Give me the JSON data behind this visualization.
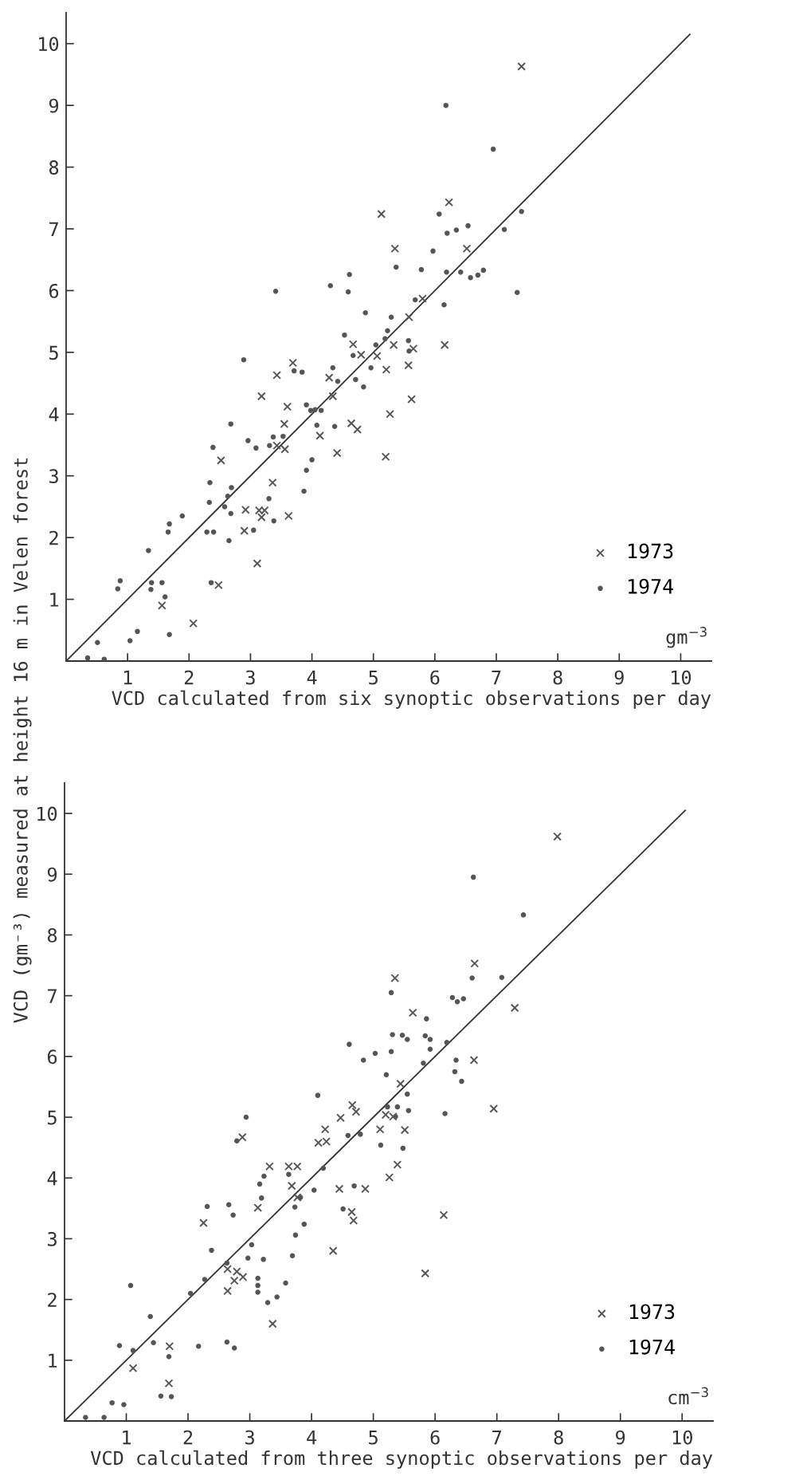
{
  "chart_data": [
    {
      "type": "scatter",
      "xlabel": "VCD calculated from six synoptic observations per day",
      "ylabel": "VCD (gm⁻³) measured at height 16 m in Velen forest",
      "annotations": [
        "gm$^{−3}$"
      ],
      "xlim": [
        0,
        10.5
      ],
      "ylim": [
        0,
        10.5
      ],
      "xticks": [
        1,
        2,
        3,
        4,
        5,
        6,
        7,
        8,
        9,
        10
      ],
      "yticks": [
        1,
        2,
        3,
        4,
        5,
        6,
        7,
        8,
        9,
        10
      ],
      "grid": false,
      "legend": "bottom right",
      "series": [
        {
          "name": "1973",
          "marker": "cross",
          "color": "#555555",
          "x": [
            7.41,
            5.13,
            6.23,
            5.35,
            6.52,
            5.8,
            5.58,
            4.67,
            4.8,
            5.06,
            5.33,
            5.65,
            6.16,
            5.57,
            5.21,
            3.69,
            3.43,
            4.28,
            4.34,
            3.18,
            3.6,
            5.62,
            5.27,
            3.55,
            4.64,
            4.74,
            4.13,
            3.43,
            3.56,
            4.41,
            5.2,
            2.52,
            3.36,
            2.92,
            3.14,
            3.23,
            3.18,
            3.62,
            2.9,
            3.11,
            2.48,
            1.56,
            2.07
          ],
          "values": [
            9.63,
            7.24,
            7.43,
            6.68,
            6.68,
            5.87,
            5.57,
            5.13,
            4.96,
            4.94,
            5.12,
            5.06,
            5.12,
            4.79,
            4.72,
            4.83,
            4.63,
            4.59,
            4.29,
            4.29,
            4.12,
            4.24,
            4.0,
            3.84,
            3.85,
            3.75,
            3.65,
            3.49,
            3.43,
            3.37,
            3.31,
            3.25,
            2.89,
            2.45,
            2.44,
            2.44,
            2.33,
            2.35,
            2.11,
            1.58,
            1.23,
            0.9,
            0.61
          ]
        },
        {
          "name": "1974",
          "marker": "circle",
          "color": "#555555",
          "x": [
            6.18,
            6.95,
            7.41,
            6.07,
            7.13,
            6.2,
            6.35,
            6.54,
            5.97,
            5.37,
            5.78,
            4.61,
            4.59,
            4.3,
            3.41,
            7.34,
            6.19,
            6.42,
            6.58,
            6.7,
            6.79,
            4.87,
            5.29,
            6.15,
            5.68,
            4.53,
            5.23,
            5.19,
            5.04,
            5.57,
            5.58,
            4.67,
            4.96,
            4.71,
            4.84,
            2.89,
            3.71,
            3.84,
            4.34,
            4.42,
            3.91,
            3.98,
            4.05,
            4.15,
            4.08,
            4.37,
            2.68,
            2.96,
            3.09,
            3.37,
            3.53,
            3.31,
            4.0,
            3.91,
            3.87,
            2.39,
            2.34,
            2.33,
            2.69,
            2.63,
            2.58,
            2.68,
            3.3,
            3.38,
            3.05,
            2.65,
            1.89,
            1.68,
            1.66,
            2.29,
            2.4,
            1.34,
            2.36,
            0.88,
            0.84,
            1.39,
            1.56,
            1.38,
            1.61,
            1.68,
            1.16,
            1.04,
            0.51,
            0.35,
            0.62
          ],
          "values": [
            9.0,
            8.29,
            7.28,
            7.24,
            6.99,
            6.93,
            6.98,
            7.05,
            6.64,
            6.38,
            6.34,
            6.26,
            5.98,
            6.08,
            5.99,
            5.97,
            6.3,
            6.3,
            6.21,
            6.25,
            6.33,
            5.64,
            5.57,
            5.77,
            5.85,
            5.28,
            5.35,
            5.22,
            5.12,
            5.19,
            5.02,
            4.95,
            4.75,
            4.56,
            4.44,
            4.88,
            4.7,
            4.68,
            4.75,
            4.53,
            4.15,
            4.06,
            4.07,
            4.06,
            3.82,
            3.8,
            3.84,
            3.57,
            3.45,
            3.63,
            3.64,
            3.49,
            3.26,
            3.09,
            2.75,
            3.46,
            2.89,
            2.57,
            2.81,
            2.67,
            2.5,
            2.39,
            2.63,
            2.27,
            2.12,
            1.95,
            2.35,
            2.22,
            2.09,
            2.09,
            2.09,
            1.79,
            1.27,
            1.3,
            1.17,
            1.27,
            1.27,
            1.16,
            1.04,
            0.43,
            0.48,
            0.33,
            0.3,
            0.05,
            0.03
          ]
        },
        {
          "type": "line",
          "color": "#333333",
          "marker": "none",
          "line_style": "solid",
          "x": [
            0,
            10.15
          ],
          "values": [
            0,
            10.15
          ]
        }
      ]
    },
    {
      "type": "scatter",
      "xlabel": "VCD calculated from three synoptic observations per day",
      "annotations": [
        "cm$^{−3}$"
      ],
      "xlim": [
        0,
        10.5
      ],
      "ylim": [
        0,
        10.5
      ],
      "xticks": [
        1,
        2,
        3,
        4,
        5,
        6,
        7,
        8,
        9,
        10
      ],
      "yticks": [
        1,
        2,
        3,
        4,
        5,
        6,
        7,
        8,
        9,
        10
      ],
      "grid": false,
      "legend": "bottom right",
      "series": [
        {
          "name": "1973",
          "marker": "cross",
          "color": "#555555",
          "x": [
            7.98,
            6.64,
            5.35,
            7.29,
            5.64,
            6.63,
            5.44,
            6.95,
            4.66,
            4.72,
            4.47,
            5.11,
            5.2,
            5.32,
            5.51,
            2.88,
            4.22,
            4.11,
            4.24,
            5.39,
            5.26,
            3.32,
            3.63,
            3.77,
            3.68,
            3.13,
            4.45,
            4.87,
            4.65,
            4.68,
            6.14,
            4.35,
            3.77,
            2.25,
            2.64,
            2.64,
            2.79,
            2.75,
            2.89,
            5.84,
            3.37,
            1.7,
            1.11,
            1.69
          ],
          "values": [
            9.62,
            7.53,
            7.29,
            6.8,
            6.72,
            5.94,
            5.55,
            5.14,
            5.2,
            5.09,
            4.99,
            4.8,
            5.04,
            5.01,
            4.79,
            4.67,
            4.8,
            4.58,
            4.6,
            4.22,
            4.01,
            4.19,
            4.19,
            4.19,
            3.87,
            3.51,
            3.82,
            3.82,
            3.44,
            3.3,
            3.39,
            2.8,
            3.68,
            3.26,
            2.5,
            2.14,
            2.46,
            2.31,
            2.37,
            2.43,
            1.6,
            1.23,
            0.87,
            0.62
          ]
        },
        {
          "name": "1974",
          "marker": "circle",
          "color": "#555555",
          "x": [
            6.62,
            7.43,
            6.6,
            7.08,
            5.29,
            6.28,
            6.36,
            6.46,
            5.86,
            5.31,
            5.47,
            5.55,
            5.84,
            5.92,
            5.29,
            4.61,
            5.03,
            4.84,
            5.81,
            5.92,
            6.19,
            6.34,
            6.32,
            6.43,
            5.21,
            5.55,
            4.1,
            2.94,
            5.23,
            5.39,
            5.57,
            6.16,
            5.36,
            5.12,
            5.48,
            2.79,
            4.59,
            4.79,
            4.19,
            3.23,
            3.16,
            3.63,
            4.04,
            4.69,
            3.19,
            3.82,
            3.73,
            4.51,
            2.66,
            2.73,
            2.31,
            3.88,
            3.74,
            3.03,
            2.38,
            3.69,
            3.22,
            2.97,
            2.63,
            2.27,
            2.04,
            3.13,
            3.13,
            3.13,
            3.58,
            3.44,
            3.29,
            1.07,
            1.39,
            1.44,
            0.89,
            1.11,
            2.17,
            2.63,
            2.75,
            1.69,
            1.56,
            1.73,
            0.77,
            0.96,
            0.34,
            0.64
          ],
          "values": [
            8.95,
            8.33,
            7.29,
            7.3,
            7.05,
            6.97,
            6.9,
            6.95,
            6.62,
            6.36,
            6.35,
            6.28,
            6.34,
            6.28,
            6.08,
            6.2,
            6.05,
            5.94,
            5.89,
            6.12,
            6.23,
            5.94,
            5.75,
            5.59,
            5.7,
            5.38,
            5.36,
            5.0,
            5.17,
            5.17,
            5.11,
            5.06,
            5.01,
            4.54,
            4.49,
            4.61,
            4.7,
            4.72,
            4.16,
            4.03,
            3.9,
            4.06,
            3.8,
            3.87,
            3.67,
            3.68,
            3.52,
            3.49,
            3.56,
            3.39,
            3.53,
            3.24,
            3.06,
            2.9,
            2.81,
            2.72,
            2.66,
            2.68,
            2.6,
            2.33,
            2.1,
            2.35,
            2.23,
            2.12,
            2.27,
            2.04,
            1.95,
            2.23,
            1.72,
            1.29,
            1.24,
            1.16,
            1.23,
            1.3,
            1.2,
            1.06,
            0.41,
            0.4,
            0.3,
            0.27,
            0.06,
            0.06
          ]
        },
        {
          "type": "line",
          "color": "#333333",
          "marker": "none",
          "line_style": "solid",
          "x": [
            0,
            10.05
          ],
          "values": [
            0,
            10.05
          ]
        }
      ]
    }
  ]
}
